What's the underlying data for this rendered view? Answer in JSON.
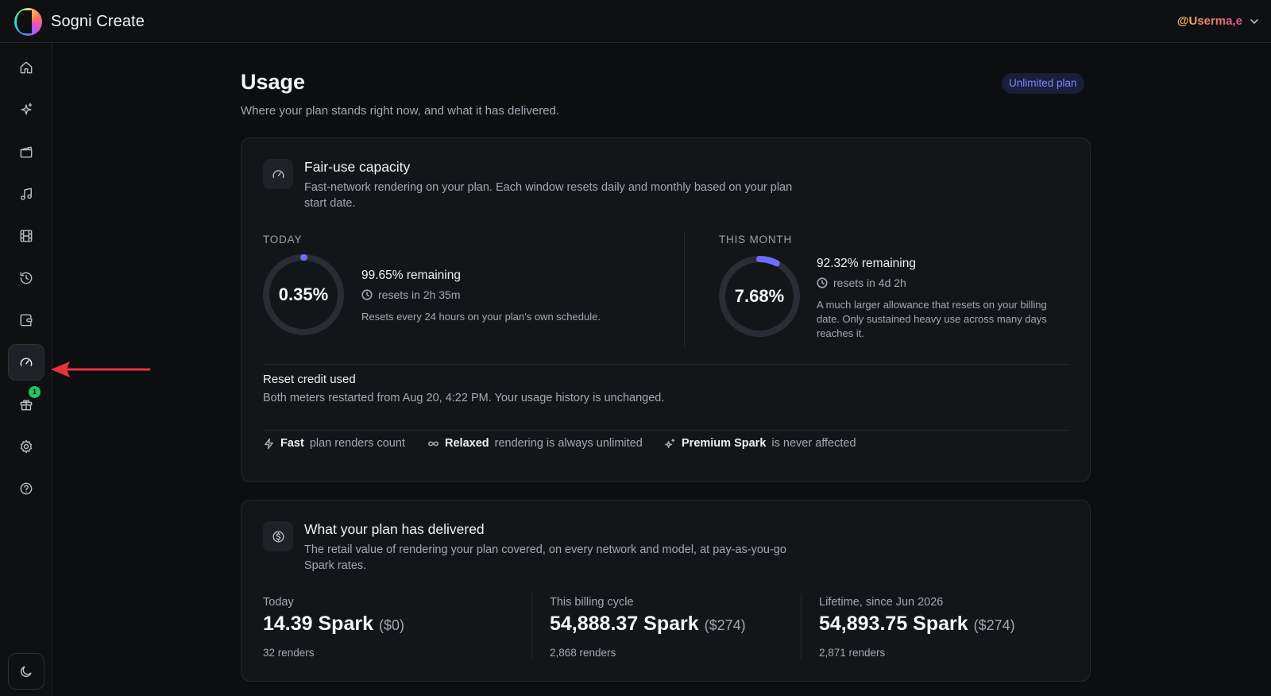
{
  "header": {
    "app_title": "Sogni Create",
    "username": "@Userma,e"
  },
  "sidebar": {
    "items": [
      {
        "name": "home",
        "icon": "home-icon"
      },
      {
        "name": "create",
        "icon": "sparkles-icon"
      },
      {
        "name": "video",
        "icon": "clapperboard-icon"
      },
      {
        "name": "music",
        "icon": "music-note-icon"
      },
      {
        "name": "film",
        "icon": "film-strip-icon"
      },
      {
        "name": "history",
        "icon": "history-icon"
      },
      {
        "name": "wallet",
        "icon": "wallet-icon"
      },
      {
        "name": "usage",
        "icon": "gauge-icon",
        "active": true
      },
      {
        "name": "rewards",
        "icon": "gift-icon",
        "badge": "1"
      },
      {
        "name": "settings",
        "icon": "gear-icon"
      },
      {
        "name": "help",
        "icon": "help-circle-icon"
      }
    ],
    "theme_toggle_icon": "moon-icon"
  },
  "page": {
    "title": "Usage",
    "subtitle": "Where your plan stands right now, and what it has delivered.",
    "plan_badge": "Unlimited plan"
  },
  "capacity": {
    "title": "Fair-use capacity",
    "description": "Fast-network rendering on your plan. Each window resets daily and monthly based on your plan start date.",
    "today": {
      "label": "TODAY",
      "used_pct": "0.35%",
      "used_value": 0.35,
      "remaining": "99.65% remaining",
      "resets": "resets in 2h 35m",
      "note": "Resets every 24 hours on your plan's own schedule."
    },
    "month": {
      "label": "THIS MONTH",
      "used_pct": "7.68%",
      "used_value": 7.68,
      "remaining": "92.32% remaining",
      "resets": "resets in 4d 2h",
      "note": "A much larger allowance that resets on your billing date. Only sustained heavy use across many days reaches it."
    },
    "reset_credit": {
      "title": "Reset credit used",
      "description": "Both meters restarted from Aug 20, 4:22 PM. Your usage history is unchanged."
    },
    "footer": [
      {
        "icon": "lightning-icon",
        "bold": "Fast",
        "text": "plan renders count"
      },
      {
        "icon": "infinity-icon",
        "bold": "Relaxed",
        "text": "rendering is always unlimited"
      },
      {
        "icon": "sparkle-icon",
        "bold": "Premium Spark",
        "text": "is never affected"
      }
    ]
  },
  "delivered": {
    "title": "What your plan has delivered",
    "description": "The retail value of rendering your plan covered, on every network and model, at pay-as-you-go Spark rates.",
    "stats": [
      {
        "label": "Today",
        "value": "14.39 Spark",
        "usd": "($0)",
        "renders": "32 renders"
      },
      {
        "label": "This billing cycle",
        "value": "54,888.37 Spark",
        "usd": "($274)",
        "renders": "2,868 renders"
      },
      {
        "label": "Lifetime, since Jun 2026",
        "value": "54,893.75 Spark",
        "usd": "($274)",
        "renders": "2,871 renders"
      }
    ]
  },
  "colors": {
    "accent": "#6b6dff",
    "badge_green": "#22c55e",
    "arrow": "#e8313f",
    "ring_track": "#2a2d33"
  }
}
